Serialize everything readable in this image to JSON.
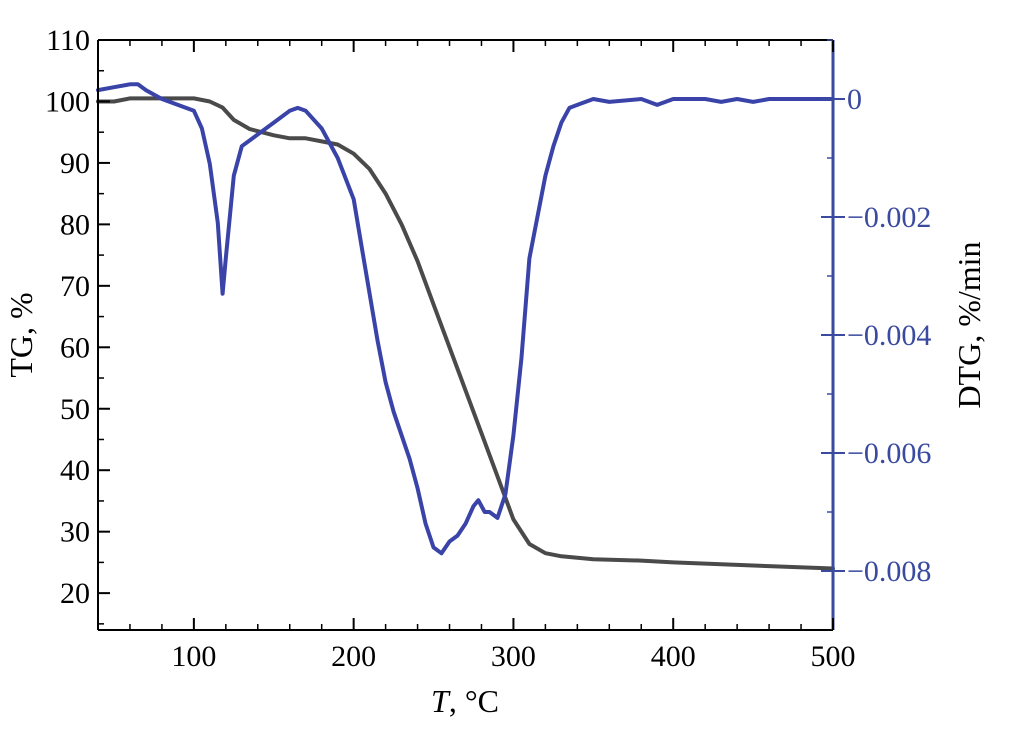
{
  "chart_data": {
    "type": "line",
    "xlabel": {
      "symbol": "T",
      "unit": ", °C"
    },
    "ylabel_left": "TG, %",
    "ylabel_right": "DTG, %/min",
    "xlim": [
      40,
      500
    ],
    "ylim_left": [
      14,
      110
    ],
    "ylim_right": [
      -0.009,
      0.001
    ],
    "x_ticks": [
      100,
      200,
      300,
      400,
      500
    ],
    "y_left_ticks": [
      20,
      30,
      40,
      50,
      60,
      70,
      80,
      90,
      100,
      110
    ],
    "y_right_ticks": [
      {
        "value": 0,
        "label": "0"
      },
      {
        "value": -0.002,
        "label": "−0.002"
      },
      {
        "value": -0.004,
        "label": "−0.004"
      },
      {
        "value": -0.006,
        "label": "−0.006"
      },
      {
        "value": -0.008,
        "label": "−0.008"
      }
    ],
    "grid": false,
    "colors": {
      "axis_left": "#000000",
      "axis_right": "#3a4aa0",
      "tg": "#4a4a4a",
      "dtg": "#3a44a8"
    },
    "series": [
      {
        "axis": "left",
        "x": [
          40,
          50,
          60,
          80,
          100,
          110,
          118,
          125,
          135,
          150,
          160,
          170,
          180,
          190,
          200,
          210,
          220,
          230,
          240,
          250,
          260,
          270,
          280,
          290,
          300,
          310,
          320,
          330,
          350,
          380,
          400,
          450,
          500
        ],
        "values": [
          100,
          100,
          100.5,
          100.5,
          100.5,
          100,
          99,
          97,
          95.5,
          94.5,
          94,
          94,
          93.5,
          93,
          91.5,
          89,
          85,
          80,
          74,
          67,
          60,
          53,
          46,
          39,
          32,
          28,
          26.5,
          26,
          25.5,
          25.3,
          25,
          24.5,
          24
        ]
      },
      {
        "axis": "right",
        "x": [
          40,
          50,
          60,
          65,
          70,
          80,
          90,
          100,
          105,
          110,
          115,
          118,
          120,
          125,
          130,
          140,
          150,
          160,
          165,
          170,
          180,
          190,
          200,
          205,
          210,
          215,
          220,
          225,
          230,
          235,
          240,
          245,
          250,
          255,
          260,
          265,
          270,
          275,
          278,
          282,
          285,
          290,
          295,
          300,
          305,
          310,
          315,
          320,
          325,
          330,
          335,
          340,
          350,
          360,
          380,
          390,
          400,
          410,
          420,
          430,
          440,
          450,
          460,
          480,
          500
        ],
        "values": [
          0.00015,
          0.0002,
          0.00025,
          0.00025,
          0.00015,
          0.0,
          -0.0001,
          -0.0002,
          -0.0005,
          -0.0011,
          -0.0021,
          -0.0033,
          -0.0027,
          -0.0013,
          -0.0008,
          -0.0006,
          -0.0004,
          -0.0002,
          -0.00015,
          -0.0002,
          -0.0005,
          -0.001,
          -0.0017,
          -0.0025,
          -0.0033,
          -0.0041,
          -0.0048,
          -0.0053,
          -0.0057,
          -0.0061,
          -0.0066,
          -0.0072,
          -0.0076,
          -0.0077,
          -0.0075,
          -0.0074,
          -0.0072,
          -0.0069,
          -0.0068,
          -0.007,
          -0.007,
          -0.0071,
          -0.0067,
          -0.0057,
          -0.0044,
          -0.0027,
          -0.002,
          -0.0013,
          -0.0008,
          -0.0004,
          -0.00015,
          -0.0001,
          0.0,
          -5e-05,
          0.0,
          -0.0001,
          0.0,
          0.0,
          0.0,
          -5e-05,
          0.0,
          -5e-05,
          0.0,
          0.0,
          0.0
        ]
      }
    ]
  }
}
